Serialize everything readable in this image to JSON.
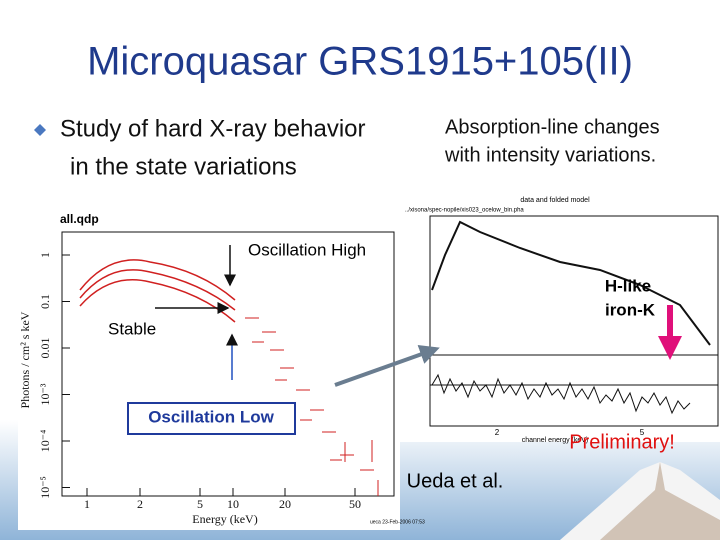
{
  "slide": {
    "title": "Microquasar GRS1915+105(II)",
    "bullet": {
      "line1": "Study of hard X-ray behavior",
      "line2": "in the state variations"
    },
    "right_text": {
      "line1": "Absorption-line changes",
      "line2": "with intensity variations."
    },
    "left_plot": {
      "name": "all.qdp",
      "ylabel": "Photons / cm² s keV",
      "xlabel": "Energy (keV)",
      "yticks": [
        "1",
        "0.1",
        "0.01",
        "10⁻³",
        "10⁻⁴",
        "10⁻⁵"
      ],
      "xticks": [
        "1",
        "2",
        "5",
        "10",
        "20",
        "50"
      ],
      "footer": "ueca 23-Feb-2006 07:53"
    },
    "right_plot": {
      "header": "data and folded model",
      "path": "../xisona/spec-nopile/xis023_ocelow_bin.pha",
      "xticks": [
        "2",
        "5"
      ],
      "xlabel": "channel energy (keV)"
    },
    "labels": {
      "osc_high": "Oscillation High",
      "stable": "Stable",
      "osc_low": "Oscillation Low",
      "iron1": "H-like",
      "iron2": "iron-K",
      "preliminary": "Preliminary!",
      "credit": "Ueda et al."
    }
  }
}
